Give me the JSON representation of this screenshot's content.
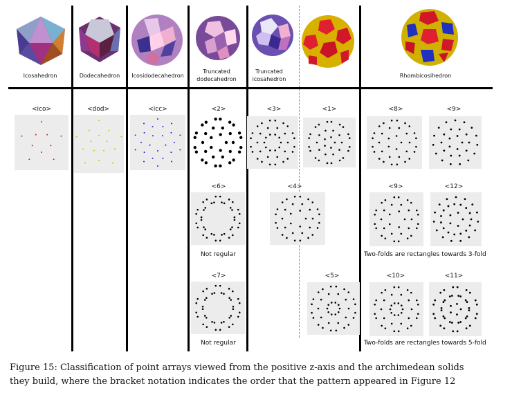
{
  "solids": [
    {
      "name": "Icosahedron"
    },
    {
      "name": "Dodecahedron"
    },
    {
      "name": "Icosidodecahedron"
    },
    {
      "name": "Truncated dodecahedron"
    },
    {
      "name": "Truncated icosahedron"
    },
    {
      "name": ""
    },
    {
      "name": "Rhombicosihedron"
    }
  ],
  "tags": {
    "ico": "<ico>",
    "dod": "<dod>",
    "icc": "<icc>",
    "t2": "<2>",
    "t3": "<3>",
    "t1": "<1>",
    "t8": "<8>",
    "t9a": "<9>",
    "t6": "<6>",
    "t4": "<4>",
    "t9b": "<9>",
    "t12": "<12>",
    "t7": "<7>",
    "t5": "<5>",
    "t10": "<10>",
    "t11": "<11>"
  },
  "notes": {
    "not_regular_1": "Not regular",
    "not_regular_2": "Not regular",
    "rect_3fold": "Two-folds are rectangles towards 3-fold",
    "rect_5fold": "Two-folds are rectangles towards 5-fold"
  },
  "caption": {
    "line1": "Figure 15: Classification of point arrays viewed from the positive z-axis and the archimedean solids",
    "line2": "they build, where the bracket notation indicates the order that the pattern appeared in Figure 12"
  },
  "colors": {
    "ico_dots": "#e02020",
    "dod_dots": "#c8c800",
    "icc_dots": "#2020d0",
    "panel_bg": "#ececec"
  }
}
